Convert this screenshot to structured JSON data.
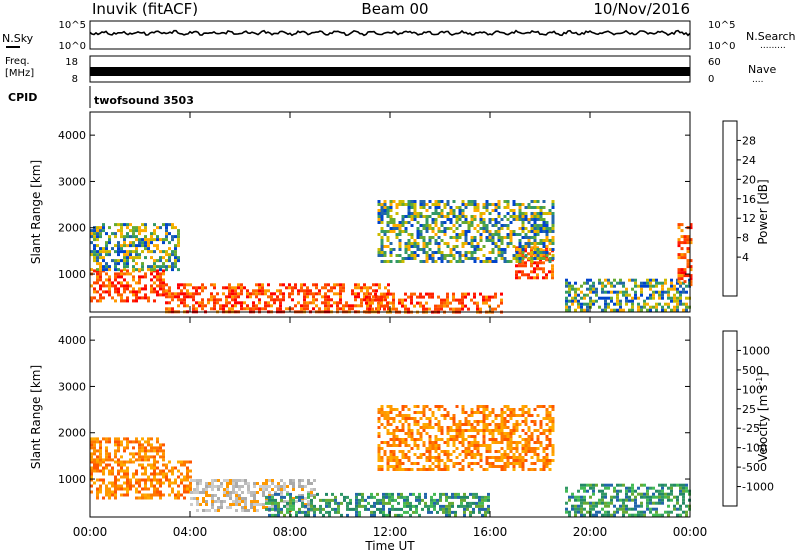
{
  "header": {
    "station": "Inuvik (fitACF)",
    "beam": "Beam 00",
    "date": "10/Nov/2016"
  },
  "nsky_panel": {
    "left_label": "N.Sky",
    "right_label": "N.Search",
    "right_dots": ".........",
    "left_ticks": [
      "10^5",
      "10^0"
    ],
    "right_ticks": [
      "10^5",
      "10^0"
    ]
  },
  "freq_panel": {
    "left_label_1": "Freq.",
    "left_label_2": "[MHz]",
    "right_label": "Nave",
    "right_dots": "....",
    "left_ticks": [
      "18",
      "8"
    ],
    "right_ticks": [
      "60",
      "0"
    ]
  },
  "cpid": {
    "label": "CPID",
    "value": "twofsound 3503"
  },
  "power_colorbar": {
    "label": "Power [dB]",
    "ticks": [
      "28",
      "24",
      "20",
      "16",
      "12",
      "8",
      "4"
    ],
    "colors": [
      "#ff0000",
      "#ff3300",
      "#ff7700",
      "#ffaa00",
      "#cccc00",
      "#66aa33",
      "#338866",
      "#2255aa",
      "#0000ff"
    ]
  },
  "velocity_colorbar": {
    "label": "Velocity [m s^-1]",
    "ticks": [
      "1000",
      "500",
      "100",
      "25",
      "-25",
      "-100",
      "-500",
      "-1000"
    ],
    "colors": [
      "#2255cc",
      "#2288aa",
      "#339966",
      "#66cc33",
      "#bbbbbb",
      "#ff9900",
      "#ff6600",
      "#ff3300",
      "#ff0000"
    ]
  },
  "xaxis_label": "Time UT",
  "chart_data": [
    {
      "type": "heatmap",
      "title": "Power",
      "xlabel": "Time UT",
      "ylabel": "Slant Range [km]",
      "x_ticks": [
        "00:00",
        "04:00",
        "08:00",
        "12:00",
        "16:00",
        "20:00",
        "00:00"
      ],
      "y_ticks": [
        "4000",
        "3000",
        "2000",
        "1000"
      ],
      "xlim_hours": [
        0,
        24
      ],
      "ylim_km": [
        180,
        4500
      ],
      "colorbar_label": "Power [dB]",
      "patches": [
        {
          "t0": 0.0,
          "t1": 3.0,
          "r0": 400,
          "r1": 1100,
          "level": "high"
        },
        {
          "t0": 0.0,
          "t1": 3.5,
          "r0": 1100,
          "r1": 2100,
          "level": "mid"
        },
        {
          "t0": 3.0,
          "t1": 12.0,
          "r0": 200,
          "r1": 800,
          "level": "high"
        },
        {
          "t0": 11.0,
          "t1": 16.5,
          "r0": 200,
          "r1": 600,
          "level": "high"
        },
        {
          "t0": 17.0,
          "t1": 18.5,
          "r0": 900,
          "r1": 1600,
          "level": "high"
        },
        {
          "t0": 19.0,
          "t1": 24.0,
          "r0": 200,
          "r1": 900,
          "level": "mid"
        },
        {
          "t0": 11.5,
          "t1": 18.5,
          "r0": 1300,
          "r1": 2600,
          "level": "mid"
        },
        {
          "t0": 23.5,
          "t1": 24.0,
          "r0": 800,
          "r1": 2100,
          "level": "high"
        }
      ]
    },
    {
      "type": "heatmap",
      "title": "Velocity",
      "xlabel": "Time UT",
      "ylabel": "Slant Range [km]",
      "x_ticks": [
        "00:00",
        "04:00",
        "08:00",
        "12:00",
        "16:00",
        "20:00",
        "00:00"
      ],
      "y_ticks": [
        "4000",
        "3000",
        "2000",
        "1000"
      ],
      "xlim_hours": [
        0,
        24
      ],
      "ylim_km": [
        180,
        4500
      ],
      "colorbar_label": "Velocity [m s^-1]",
      "patches": [
        {
          "t0": 0.0,
          "t1": 4.0,
          "r0": 600,
          "r1": 1400,
          "level": "negative"
        },
        {
          "t0": 0.0,
          "t1": 3.0,
          "r0": 1400,
          "r1": 1900,
          "level": "negative"
        },
        {
          "t0": 4.0,
          "t1": 9.0,
          "r0": 300,
          "r1": 1000,
          "level": "near_zero"
        },
        {
          "t0": 7.0,
          "t1": 16.0,
          "r0": 200,
          "r1": 700,
          "level": "positive"
        },
        {
          "t0": 11.5,
          "t1": 18.5,
          "r0": 1200,
          "r1": 2600,
          "level": "negative"
        },
        {
          "t0": 19.0,
          "t1": 24.0,
          "r0": 200,
          "r1": 900,
          "level": "positive"
        }
      ]
    }
  ]
}
